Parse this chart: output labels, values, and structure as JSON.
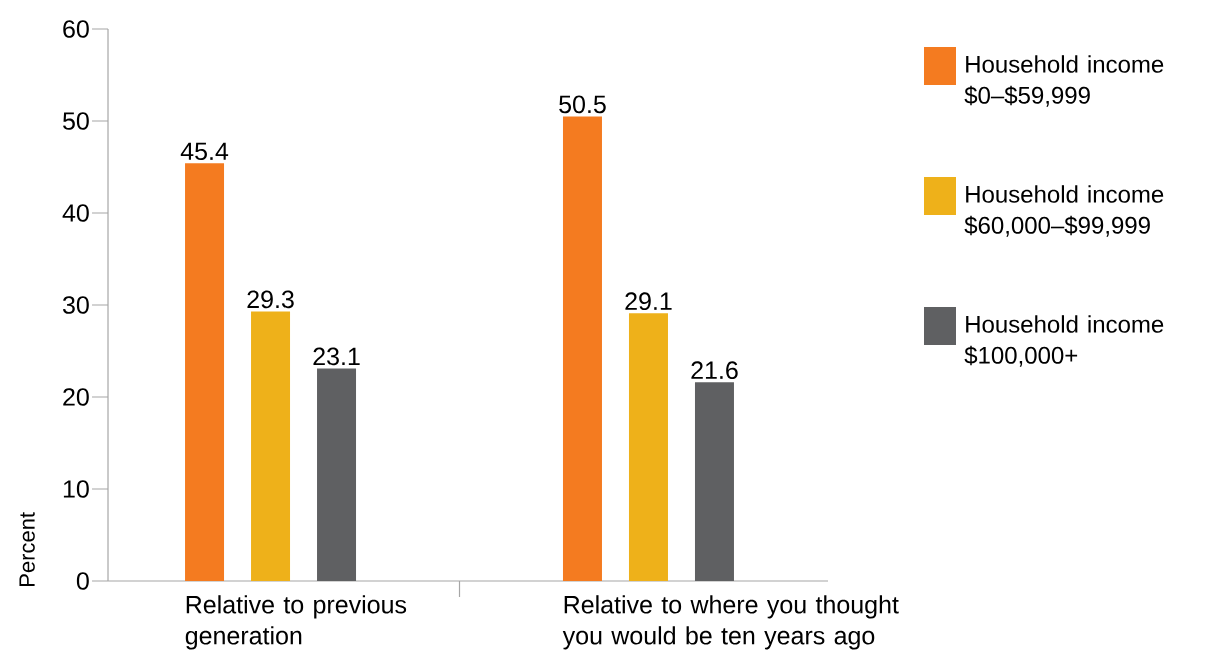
{
  "chart_data": {
    "type": "bar",
    "ylabel": "Percent",
    "categories": [
      "Relative to previous generation",
      "Relative to where you thought you would be ten years ago"
    ],
    "series": [
      {
        "name": "Household income $0–$59,999",
        "color": "#f47b20",
        "values": [
          45.4,
          50.5
        ]
      },
      {
        "name": "Household income $60,000–$99,999",
        "color": "#eeb11a",
        "values": [
          29.3,
          29.1
        ]
      },
      {
        "name": "Household income $100,000+",
        "color": "#5f6062",
        "values": [
          23.1,
          21.6
        ]
      }
    ],
    "ylim": [
      0,
      60
    ],
    "yticks": [
      0,
      10,
      20,
      30,
      40,
      50,
      60
    ],
    "data_labels": true,
    "legend": "right",
    "grid": false
  }
}
